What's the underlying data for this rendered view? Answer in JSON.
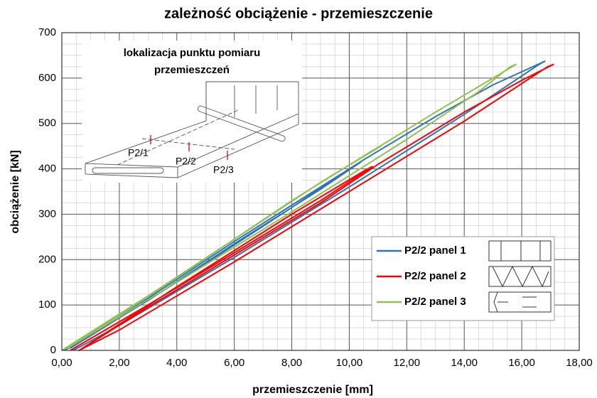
{
  "chart_data": {
    "type": "line",
    "title": "zależność obciążenie - przemieszczenie",
    "x_label": "przemieszczenie [mm]",
    "y_label": "obciążenie [kN]",
    "xlim": [
      0,
      18
    ],
    "ylim": [
      0,
      700
    ],
    "xticks": [
      {
        "value": 0,
        "label": "0,00"
      },
      {
        "value": 2,
        "label": "2,00"
      },
      {
        "value": 4,
        "label": "4,00"
      },
      {
        "value": 6,
        "label": "6,00"
      },
      {
        "value": 8,
        "label": "8,00"
      },
      {
        "value": 10,
        "label": "10,00"
      },
      {
        "value": 12,
        "label": "12,00"
      },
      {
        "value": 14,
        "label": "14,00"
      },
      {
        "value": 16,
        "label": "16,00"
      },
      {
        "value": 18,
        "label": "18,00"
      }
    ],
    "yticks": [
      0,
      100,
      200,
      300,
      400,
      500,
      600,
      700
    ],
    "grid": true,
    "legend": "lower right",
    "series": [
      {
        "name": "P2/2 panel 1",
        "color": "#2e75b6",
        "x": [
          0.1,
          3,
          6,
          9,
          10.4,
          10.0,
          8,
          4,
          0.3,
          3,
          6,
          9,
          10.5,
          13,
          15,
          16.8,
          16.6,
          14,
          10,
          6,
          2,
          0.4
        ],
        "values": [
          0,
          110,
          235,
          355,
          415,
          400,
          315,
          150,
          5,
          115,
          240,
          360,
          420,
          515,
          585,
          637,
          630,
          520,
          360,
          205,
          55,
          0
        ]
      },
      {
        "name": "P2/2 panel 2",
        "color": "#ff0000",
        "x": [
          0.3,
          3,
          6,
          9,
          10.8,
          10.5,
          8,
          4,
          0.6,
          3,
          6,
          9,
          11,
          14,
          16,
          17.1,
          16.9,
          14,
          10,
          6,
          2,
          0.6
        ],
        "values": [
          0,
          100,
          215,
          330,
          405,
          395,
          300,
          140,
          0,
          95,
          210,
          325,
          410,
          525,
          595,
          630,
          625,
          505,
          350,
          195,
          45,
          0
        ]
      },
      {
        "name": "P2/2 panel 3",
        "color": "#92c050",
        "x": [
          0,
          3,
          6,
          9,
          11.1,
          10.8,
          8,
          4,
          0.2,
          3,
          6,
          9,
          11.2,
          13,
          15.8,
          15.6,
          14.5,
          12,
          8,
          4,
          0.2
        ],
        "values": [
          0,
          120,
          245,
          370,
          450,
          440,
          330,
          160,
          5,
          120,
          245,
          370,
          455,
          525,
          630,
          625,
          570,
          465,
          305,
          150,
          5
        ]
      }
    ],
    "inset": {
      "title_lines": [
        "lokalizacja punktu pomiaru",
        "przemieszczeń"
      ],
      "labels": [
        "P2/1",
        "P2/2",
        "P2/3"
      ]
    }
  }
}
